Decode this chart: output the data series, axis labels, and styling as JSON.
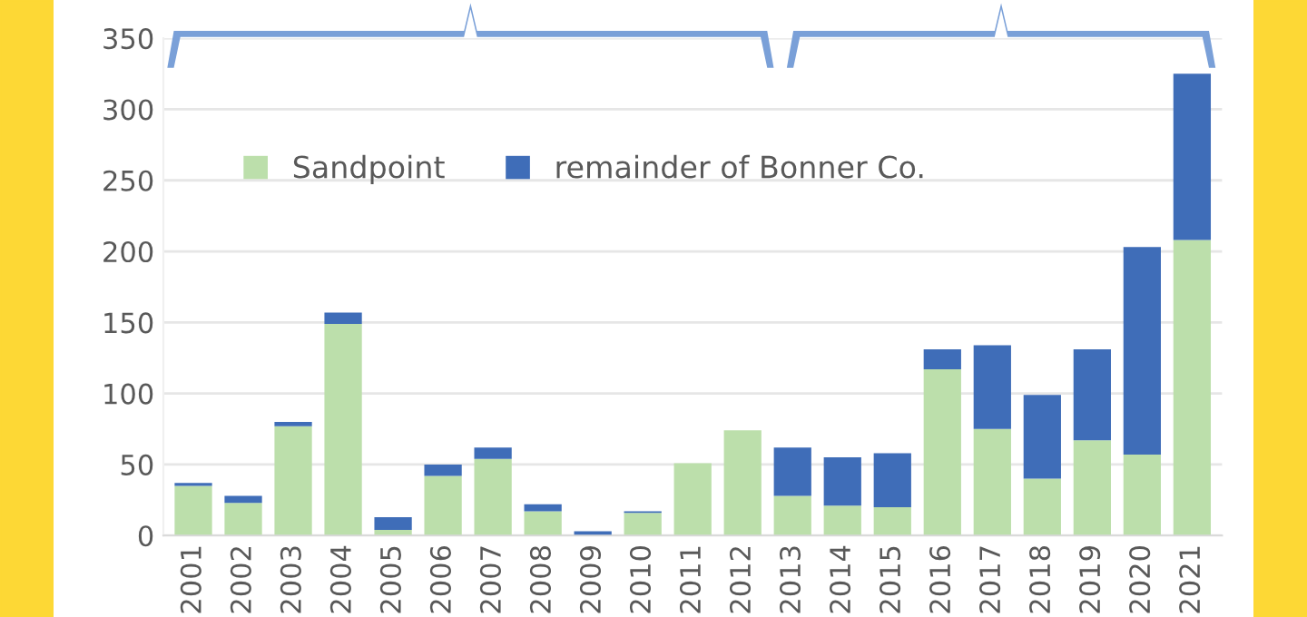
{
  "chart_data": {
    "type": "bar",
    "stacked": true,
    "categories": [
      "2001",
      "2002",
      "2003",
      "2004",
      "2005",
      "2006",
      "2007",
      "2008",
      "2009",
      "2010",
      "2011",
      "2012",
      "2013",
      "2014",
      "2015",
      "2016",
      "2017",
      "2018",
      "2019",
      "2020",
      "2021"
    ],
    "series": [
      {
        "name": "Sandpoint",
        "color": "#bcdfab",
        "values": [
          35,
          23,
          77,
          149,
          4,
          42,
          54,
          17,
          null,
          16,
          51,
          74,
          28,
          21,
          20,
          117,
          75,
          40,
          67,
          57,
          208
        ]
      },
      {
        "name": "remainder of Bonner Co.",
        "color": "#3f6db8",
        "values": [
          2,
          5,
          3,
          8,
          9,
          8,
          8,
          5,
          3,
          1,
          0,
          0,
          34,
          34,
          38,
          14,
          59,
          59,
          64,
          146,
          117
        ]
      }
    ],
    "ylim": [
      0,
      350
    ],
    "yticks": [
      0,
      50,
      100,
      150,
      200,
      250,
      300,
      350
    ],
    "grid": "y",
    "legend": "top left"
  }
}
